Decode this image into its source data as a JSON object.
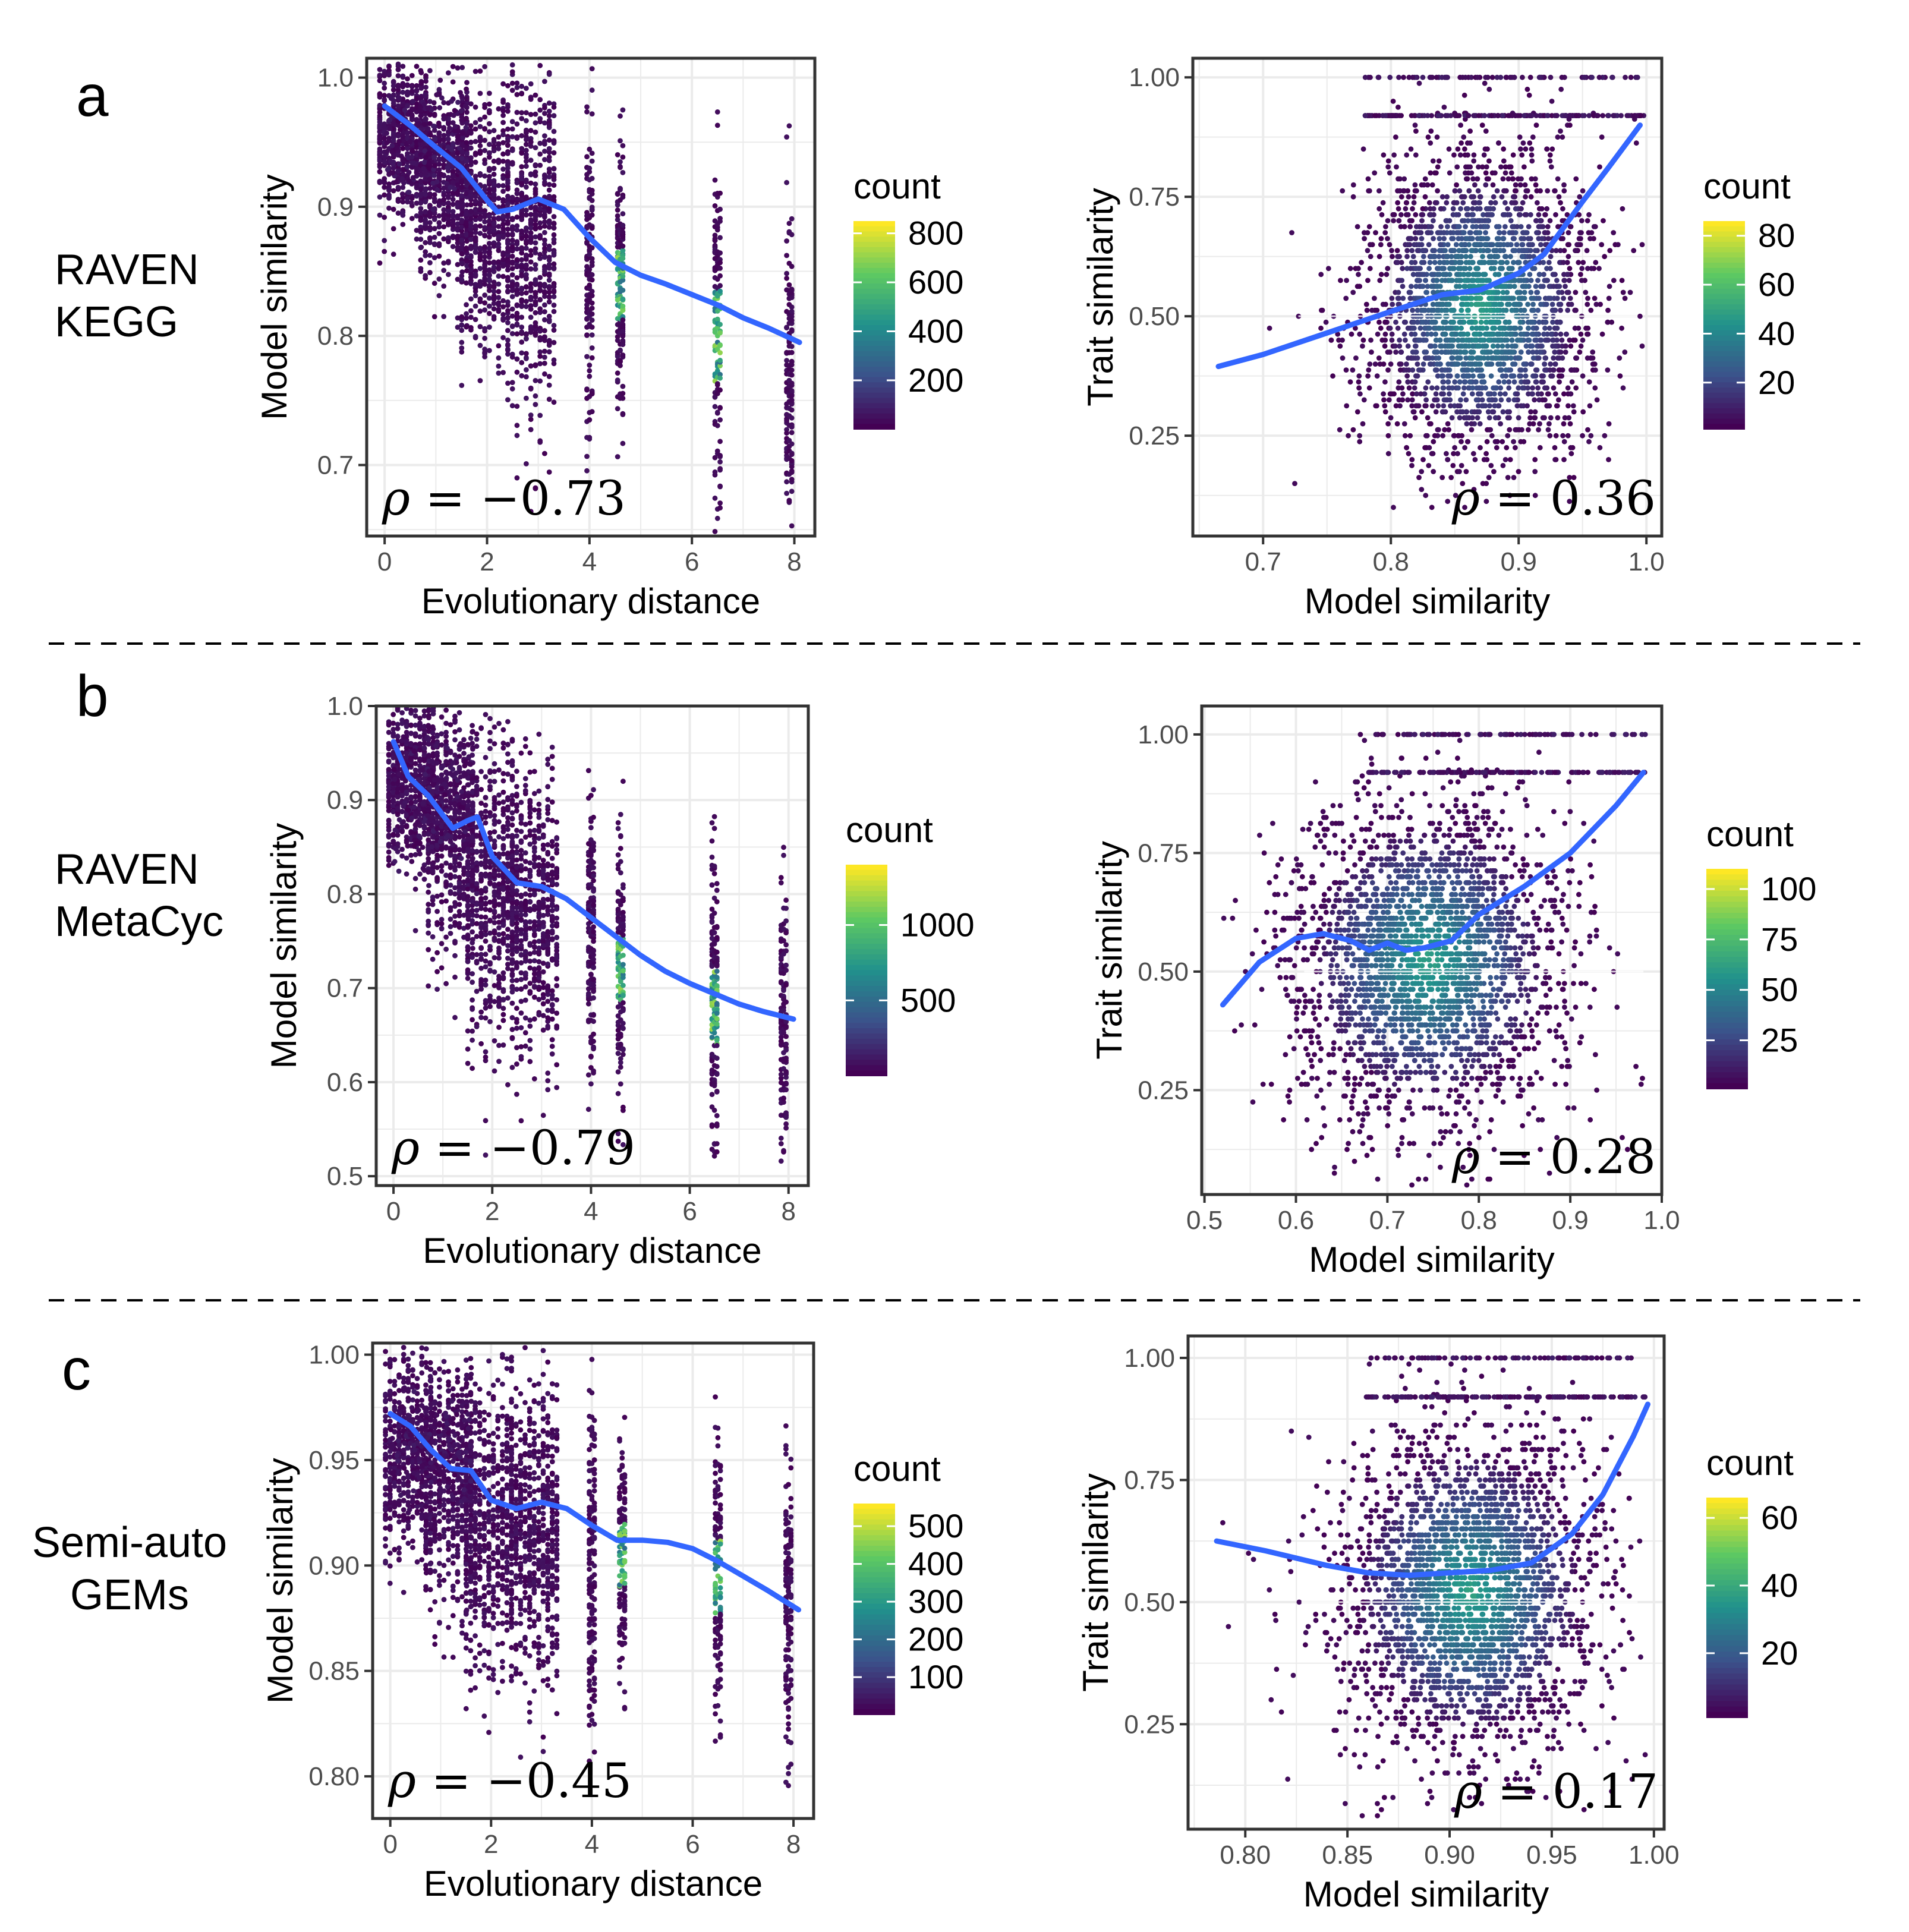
{
  "colors": {
    "viridis": [
      "#440154",
      "#3b528b",
      "#21918c",
      "#5ec962",
      "#fde725"
    ],
    "smooth_line": "#3366ff",
    "grid": "#ebebeb",
    "panel_border": "#333333",
    "separator": "#000000"
  },
  "rows": [
    {
      "letter": "a",
      "method_line1": "RAVEN",
      "method_line2": "KEGG"
    },
    {
      "letter": "b",
      "method_line1": "RAVEN",
      "method_line2": "MetaCyc"
    },
    {
      "letter": "c",
      "method_line1": "Semi-auto",
      "method_line2": "GEMs"
    }
  ],
  "chart_data": [
    {
      "type": "hexbin",
      "row": "a",
      "panel": "left",
      "xlabel": "Evolutionary distance",
      "ylabel": "Model similarity",
      "xlim": [
        -0.35,
        8.4
      ],
      "ylim": [
        0.645,
        1.015
      ],
      "xticks": [
        "0",
        "2",
        "4",
        "6",
        "8"
      ],
      "xtick_values": [
        0,
        2,
        4,
        6,
        8
      ],
      "yticks": [
        "0.7",
        "0.8",
        "0.9",
        "1.0"
      ],
      "ytick_values": [
        0.7,
        0.8,
        0.9,
        1.0
      ],
      "legend": {
        "title": "count",
        "labels": [
          "800",
          "600",
          "400",
          "200"
        ],
        "values": [
          800,
          600,
          400,
          200
        ],
        "min": 1,
        "max": 850
      },
      "annotation": {
        "symbol": "ρ",
        "text": " = −0.73",
        "value": -0.73
      },
      "smooth": {
        "x": [
          0,
          0.5,
          1,
          1.5,
          2,
          2.2,
          2.5,
          3,
          3.5,
          4,
          4.5,
          5,
          5.5,
          6,
          6.5,
          7,
          7.5,
          8.1
        ],
        "y": [
          0.978,
          0.963,
          0.946,
          0.93,
          0.905,
          0.896,
          0.898,
          0.906,
          0.898,
          0.876,
          0.857,
          0.847,
          0.84,
          0.832,
          0.824,
          0.814,
          0.806,
          0.795
        ]
      },
      "clusters": [
        [
          0.4,
          0.955,
          0.03
        ],
        [
          1.2,
          0.925,
          0.038
        ],
        [
          2.0,
          0.885,
          0.05
        ],
        [
          2.9,
          0.875,
          0.065
        ],
        [
          4.0,
          0.85,
          0.06
        ],
        [
          4.6,
          0.84,
          0.055
        ],
        [
          6.5,
          0.8,
          0.07
        ],
        [
          7.9,
          0.77,
          0.07
        ]
      ]
    },
    {
      "type": "hexbin",
      "row": "a",
      "panel": "right",
      "xlabel": "Model similarity",
      "ylabel": "Trait similarity",
      "xlim": [
        0.645,
        1.012
      ],
      "ylim": [
        0.04,
        1.04
      ],
      "xticks": [
        "0.7",
        "0.8",
        "0.9",
        "1.0"
      ],
      "xtick_values": [
        0.7,
        0.8,
        0.9,
        1.0
      ],
      "yticks": [
        "0.25",
        "0.50",
        "0.75",
        "1.00"
      ],
      "ytick_values": [
        0.25,
        0.5,
        0.75,
        1.0
      ],
      "legend": {
        "title": "count",
        "labels": [
          "80",
          "60",
          "40",
          "20"
        ],
        "values": [
          80,
          60,
          40,
          20
        ],
        "min": 1,
        "max": 86
      },
      "annotation": {
        "symbol": "ρ",
        "text": " = 0.36",
        "value": 0.36
      },
      "smooth": {
        "x": [
          0.665,
          0.7,
          0.75,
          0.8,
          0.84,
          0.87,
          0.9,
          0.92,
          0.95,
          0.97,
          0.995
        ],
        "y": [
          0.395,
          0.42,
          0.465,
          0.51,
          0.545,
          0.555,
          0.59,
          0.63,
          0.74,
          0.81,
          0.9
        ]
      },
      "center": [
        0.87,
        0.52
      ],
      "spread": [
        0.045,
        0.16
      ],
      "xrange": [
        0.66,
        0.998
      ]
    },
    {
      "type": "hexbin",
      "row": "b",
      "panel": "left",
      "xlabel": "Evolutionary distance",
      "ylabel": "Model similarity",
      "xlim": [
        -0.35,
        8.4
      ],
      "ylim": [
        0.49,
        1.0
      ],
      "xticks": [
        "0",
        "2",
        "4",
        "6",
        "8"
      ],
      "xtick_values": [
        0,
        2,
        4,
        6,
        8
      ],
      "yticks": [
        "0.5",
        "0.6",
        "0.7",
        "0.8",
        "0.9",
        "1.0"
      ],
      "ytick_values": [
        0.5,
        0.6,
        0.7,
        0.8,
        0.9,
        1.0
      ],
      "legend": {
        "title": "count",
        "labels": [
          "1000",
          "500"
        ],
        "values": [
          1000,
          500
        ],
        "min": 1,
        "max": 1400
      },
      "annotation": {
        "symbol": "ρ",
        "text": " = −0.79",
        "value": -0.79
      },
      "smooth": {
        "x": [
          0,
          0.3,
          0.7,
          1.2,
          1.5,
          1.7,
          2,
          2.5,
          3,
          3.5,
          4,
          4.5,
          5,
          5.5,
          6,
          6.5,
          7,
          7.5,
          8.1
        ],
        "y": [
          0.962,
          0.925,
          0.905,
          0.87,
          0.878,
          0.882,
          0.84,
          0.812,
          0.808,
          0.795,
          0.775,
          0.755,
          0.735,
          0.718,
          0.705,
          0.694,
          0.683,
          0.675,
          0.667
        ]
      },
      "clusters": [
        [
          0.4,
          0.92,
          0.045
        ],
        [
          1.2,
          0.87,
          0.06
        ],
        [
          2.0,
          0.81,
          0.08
        ],
        [
          2.9,
          0.78,
          0.08
        ],
        [
          4.0,
          0.75,
          0.08
        ],
        [
          4.6,
          0.72,
          0.07
        ],
        [
          6.5,
          0.68,
          0.08
        ],
        [
          7.9,
          0.66,
          0.07
        ]
      ]
    },
    {
      "type": "hexbin",
      "row": "b",
      "panel": "right",
      "xlabel": "Model similarity",
      "ylabel": "Trait similarity",
      "xlim": [
        0.497,
        1.0
      ],
      "ylim": [
        0.03,
        1.06
      ],
      "xticks": [
        "0.5",
        "0.6",
        "0.7",
        "0.8",
        "0.9",
        "1.0"
      ],
      "xtick_values": [
        0.5,
        0.6,
        0.7,
        0.8,
        0.9,
        1.0
      ],
      "yticks": [
        "0.25",
        "0.50",
        "0.75",
        "1.00"
      ],
      "ytick_values": [
        0.25,
        0.5,
        0.75,
        1.0
      ],
      "legend": {
        "title": "count",
        "labels": [
          "100",
          "75",
          "50",
          "25"
        ],
        "values": [
          100,
          75,
          50,
          25
        ],
        "min": 1,
        "max": 110
      },
      "annotation": {
        "symbol": "ρ",
        "text": " = 0.28",
        "value": 0.28
      },
      "smooth": {
        "x": [
          0.52,
          0.56,
          0.6,
          0.63,
          0.66,
          0.68,
          0.7,
          0.72,
          0.74,
          0.77,
          0.8,
          0.85,
          0.9,
          0.95,
          0.98
        ],
        "y": [
          0.43,
          0.52,
          0.57,
          0.58,
          0.565,
          0.545,
          0.56,
          0.545,
          0.55,
          0.565,
          0.62,
          0.68,
          0.75,
          0.85,
          0.92
        ]
      },
      "center": [
        0.745,
        0.52
      ],
      "spread": [
        0.075,
        0.17
      ],
      "xrange": [
        0.515,
        0.985
      ]
    },
    {
      "type": "hexbin",
      "row": "c",
      "panel": "left",
      "xlabel": "Evolutionary distance",
      "ylabel": "Model similarity",
      "xlim": [
        -0.35,
        8.4
      ],
      "ylim": [
        0.78,
        1.0055
      ],
      "xticks": [
        "0",
        "2",
        "4",
        "6",
        "8"
      ],
      "xtick_values": [
        0,
        2,
        4,
        6,
        8
      ],
      "yticks": [
        "0.80",
        "0.85",
        "0.90",
        "0.95",
        "1.00"
      ],
      "ytick_values": [
        0.8,
        0.85,
        0.9,
        0.95,
        1.0
      ],
      "legend": {
        "title": "count",
        "labels": [
          "500",
          "400",
          "300",
          "200",
          "100"
        ],
        "values": [
          500,
          400,
          300,
          200,
          100
        ],
        "min": 1,
        "max": 560
      },
      "annotation": {
        "symbol": "ρ",
        "text": " = −0.45",
        "value": -0.45
      },
      "smooth": {
        "x": [
          0,
          0.4,
          0.8,
          1.2,
          1.6,
          2,
          2.5,
          3,
          3.5,
          4,
          4.5,
          5,
          5.5,
          6,
          6.5,
          7,
          7.5,
          8.1
        ],
        "y": [
          0.972,
          0.966,
          0.955,
          0.946,
          0.945,
          0.931,
          0.927,
          0.93,
          0.927,
          0.919,
          0.912,
          0.912,
          0.911,
          0.908,
          0.902,
          0.895,
          0.888,
          0.879
        ]
      },
      "clusters": [
        [
          0.4,
          0.955,
          0.025
        ],
        [
          1.2,
          0.94,
          0.03
        ],
        [
          2.0,
          0.92,
          0.035
        ],
        [
          2.9,
          0.915,
          0.035
        ],
        [
          4.0,
          0.905,
          0.04
        ],
        [
          4.6,
          0.905,
          0.03
        ],
        [
          6.5,
          0.895,
          0.035
        ],
        [
          7.9,
          0.88,
          0.035
        ]
      ]
    },
    {
      "type": "hexbin",
      "row": "c",
      "panel": "right",
      "xlabel": "Model similarity",
      "ylabel": "Trait similarity",
      "xlim": [
        0.772,
        1.005
      ],
      "ylim": [
        0.035,
        1.045
      ],
      "xticks": [
        "0.80",
        "0.85",
        "0.90",
        "0.95",
        "1.00"
      ],
      "xtick_values": [
        0.8,
        0.85,
        0.9,
        0.95,
        1.0
      ],
      "yticks": [
        "0.25",
        "0.50",
        "0.75",
        "1.00"
      ],
      "ytick_values": [
        0.25,
        0.5,
        0.75,
        1.0
      ],
      "legend": {
        "title": "count",
        "labels": [
          "60",
          "40",
          "20"
        ],
        "values": [
          60,
          40,
          20
        ],
        "min": 1,
        "max": 66
      },
      "annotation": {
        "symbol": "ρ",
        "text": " = 0.17",
        "value": 0.17
      },
      "smooth": {
        "x": [
          0.786,
          0.81,
          0.84,
          0.86,
          0.88,
          0.9,
          0.92,
          0.94,
          0.96,
          0.975,
          0.99,
          0.997
        ],
        "y": [
          0.625,
          0.605,
          0.575,
          0.56,
          0.555,
          0.56,
          0.565,
          0.58,
          0.64,
          0.72,
          0.84,
          0.905
        ]
      },
      "center": [
        0.91,
        0.52
      ],
      "spread": [
        0.032,
        0.17
      ],
      "xrange": [
        0.785,
        0.997
      ]
    }
  ]
}
